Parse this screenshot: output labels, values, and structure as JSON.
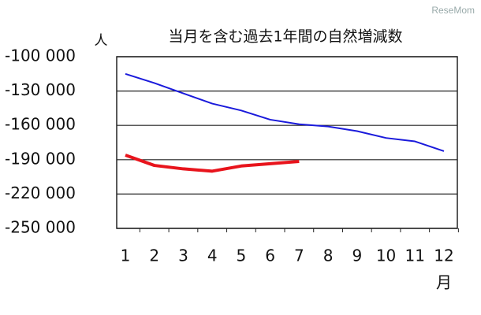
{
  "chart_data": {
    "type": "line",
    "title": "当月を含む過去1年間の自然増減数",
    "y_unit": "人",
    "x_label": "月",
    "watermark": "ReseMom",
    "categories": [
      "1",
      "2",
      "3",
      "4",
      "5",
      "6",
      "7",
      "8",
      "9",
      "10",
      "11",
      "12"
    ],
    "series": [
      {
        "color": "#1a1adb",
        "width": 2,
        "values": [
          -115000,
          -123000,
          -132000,
          -141000,
          -147000,
          -155000,
          -159000,
          -161000,
          -165000,
          -171000,
          -174000,
          -182500
        ]
      },
      {
        "color": "#e8141c",
        "width": 4,
        "values": [
          -186000,
          -195000,
          -198000,
          -200000,
          -195500,
          -193500,
          -191500,
          null,
          null,
          null,
          null,
          null
        ]
      }
    ],
    "ylim": [
      -250000,
      -100000
    ],
    "yticks": [
      {
        "value": -100000,
        "label": "-100 000"
      },
      {
        "value": -130000,
        "label": "-130 000"
      },
      {
        "value": -160000,
        "label": "-160 000"
      },
      {
        "value": -190000,
        "label": "-190 000"
      },
      {
        "value": -220000,
        "label": "-220 000"
      },
      {
        "value": -250000,
        "label": "-250 000"
      }
    ],
    "grid": true
  }
}
